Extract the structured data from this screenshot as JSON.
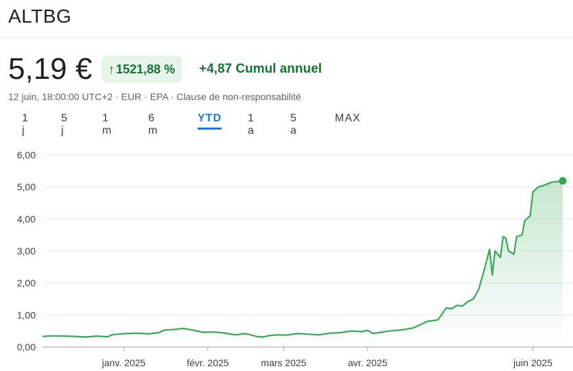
{
  "header": {
    "ticker": "ALTBG"
  },
  "quote": {
    "price": "5,19 €",
    "percent_change": "1521,88 %",
    "arrow_icon": "arrow-up-icon",
    "absolute_change": "+4,87 Cumul annuel",
    "timestamp": "12 juin, 18:00:00 UTC+2",
    "currency": "EUR",
    "exchange": "EPA",
    "disclaimer": "Clause de non-responsabilité",
    "separator": " · "
  },
  "tabs": [
    {
      "label": "1 j",
      "active": false
    },
    {
      "label": "5 j",
      "active": false
    },
    {
      "label": "1 m",
      "active": false
    },
    {
      "label": "6 m",
      "active": false
    },
    {
      "label": "YTD",
      "active": true
    },
    {
      "label": "1 a",
      "active": false
    },
    {
      "label": "5 a",
      "active": false
    },
    {
      "label": "MAX",
      "active": false
    }
  ],
  "colors": {
    "line": "#34a853",
    "positive": "#137333",
    "pill_bg": "#e6f4ea",
    "active_tab": "#1a73e8"
  },
  "chart_data": {
    "type": "area",
    "title": "",
    "xlabel": "",
    "ylabel": "",
    "ylim": [
      0,
      6
    ],
    "y_ticks": [
      "0,00",
      "1,00",
      "2,00",
      "3,00",
      "4,00",
      "5,00",
      "6,00"
    ],
    "x_ticks": [
      {
        "label": "janv. 2025",
        "date": "2025-01-01"
      },
      {
        "label": "févr. 2025",
        "date": "2025-02-01"
      },
      {
        "label": "mars 2025",
        "date": "2025-03-01"
      },
      {
        "label": "avr. 2025",
        "date": "2025-04-01"
      },
      {
        "label": "juin 2025",
        "date": "2025-06-01"
      }
    ],
    "x_range": [
      "2024-12-02",
      "2025-06-12"
    ],
    "grid": true,
    "series": [
      {
        "values": [
          [
            "2024-12-02",
            0.33
          ],
          [
            "2024-12-06",
            0.35
          ],
          [
            "2024-12-10",
            0.34
          ],
          [
            "2024-12-14",
            0.33
          ],
          [
            "2024-12-18",
            0.31
          ],
          [
            "2024-12-22",
            0.34
          ],
          [
            "2024-12-26",
            0.32
          ],
          [
            "2024-12-28",
            0.39
          ],
          [
            "2025-01-02",
            0.42
          ],
          [
            "2025-01-06",
            0.43
          ],
          [
            "2025-01-10",
            0.41
          ],
          [
            "2025-01-14",
            0.45
          ],
          [
            "2025-01-16",
            0.53
          ],
          [
            "2025-01-20",
            0.55
          ],
          [
            "2025-01-23",
            0.58
          ],
          [
            "2025-01-27",
            0.52
          ],
          [
            "2025-01-30",
            0.46
          ],
          [
            "2025-02-03",
            0.47
          ],
          [
            "2025-02-07",
            0.44
          ],
          [
            "2025-02-11",
            0.38
          ],
          [
            "2025-02-15",
            0.42
          ],
          [
            "2025-02-19",
            0.33
          ],
          [
            "2025-02-21",
            0.31
          ],
          [
            "2025-02-24",
            0.36
          ],
          [
            "2025-02-27",
            0.38
          ],
          [
            "2025-03-02",
            0.37
          ],
          [
            "2025-03-06",
            0.42
          ],
          [
            "2025-03-10",
            0.4
          ],
          [
            "2025-03-14",
            0.38
          ],
          [
            "2025-03-18",
            0.43
          ],
          [
            "2025-03-22",
            0.45
          ],
          [
            "2025-03-26",
            0.5
          ],
          [
            "2025-03-30",
            0.48
          ],
          [
            "2025-04-01",
            0.52
          ],
          [
            "2025-04-03",
            0.42
          ],
          [
            "2025-04-06",
            0.46
          ],
          [
            "2025-04-09",
            0.5
          ],
          [
            "2025-04-12",
            0.52
          ],
          [
            "2025-04-15",
            0.55
          ],
          [
            "2025-04-18",
            0.6
          ],
          [
            "2025-04-21",
            0.72
          ],
          [
            "2025-04-23",
            0.8
          ],
          [
            "2025-04-25",
            0.82
          ],
          [
            "2025-04-27",
            0.85
          ],
          [
            "2025-04-30",
            1.22
          ],
          [
            "2025-05-02",
            1.2
          ],
          [
            "2025-05-04",
            1.3
          ],
          [
            "2025-05-06",
            1.28
          ],
          [
            "2025-05-08",
            1.42
          ],
          [
            "2025-05-10",
            1.5
          ],
          [
            "2025-05-12",
            1.8
          ],
          [
            "2025-05-14",
            2.4
          ],
          [
            "2025-05-16",
            3.05
          ],
          [
            "2025-05-17",
            2.25
          ],
          [
            "2025-05-18",
            3.0
          ],
          [
            "2025-05-20",
            2.8
          ],
          [
            "2025-05-21",
            3.45
          ],
          [
            "2025-05-22",
            3.4
          ],
          [
            "2025-05-23",
            3.0
          ],
          [
            "2025-05-25",
            2.9
          ],
          [
            "2025-05-26",
            3.45
          ],
          [
            "2025-05-28",
            3.5
          ],
          [
            "2025-05-29",
            3.95
          ],
          [
            "2025-05-31",
            4.1
          ],
          [
            "2025-06-01",
            4.85
          ],
          [
            "2025-06-03",
            5.0
          ],
          [
            "2025-06-05",
            5.05
          ],
          [
            "2025-06-08",
            5.15
          ],
          [
            "2025-06-12",
            5.19
          ]
        ]
      }
    ]
  }
}
